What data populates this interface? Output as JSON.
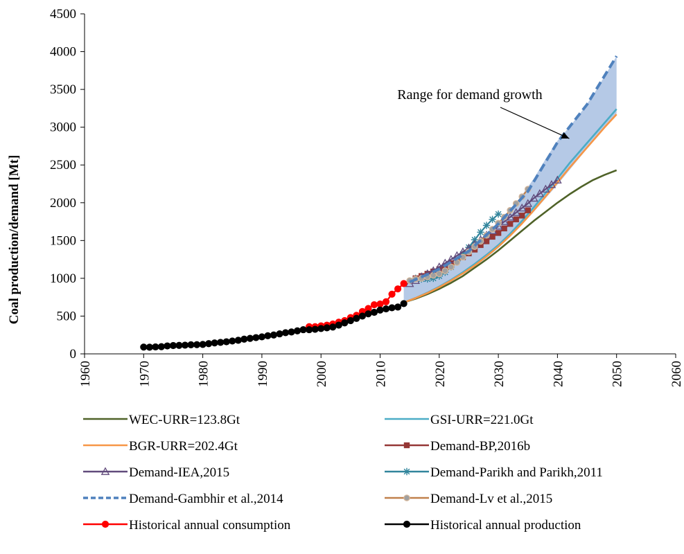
{
  "chart_data": {
    "type": "line",
    "ylabel": "Coal production/demand [Mt]",
    "xlim": [
      1960,
      2060
    ],
    "ylim": [
      0,
      4500
    ],
    "x_ticks": [
      "1960",
      "1970",
      "1980",
      "1990",
      "2000",
      "2010",
      "2020",
      "2030",
      "2040",
      "2050",
      "2060"
    ],
    "y_ticks": [
      "0",
      "500",
      "1000",
      "1500",
      "2000",
      "2500",
      "3000",
      "3500",
      "4000",
      "4500"
    ],
    "grid": false,
    "legend_position": "bottom",
    "annotation": {
      "text": "Range for demand growth",
      "arrow_to": [
        2042,
        2850
      ]
    },
    "range_band": {
      "upper": [
        [
          2014,
          950
        ],
        [
          2016,
          1000
        ],
        [
          2018,
          1050
        ],
        [
          2020,
          1120
        ],
        [
          2022,
          1200
        ],
        [
          2024,
          1290
        ],
        [
          2026,
          1400
        ],
        [
          2028,
          1550
        ],
        [
          2030,
          1720
        ],
        [
          2032,
          1900
        ],
        [
          2034,
          2100
        ],
        [
          2036,
          2320
        ],
        [
          2038,
          2580
        ],
        [
          2040,
          2820
        ],
        [
          2042,
          3000
        ],
        [
          2044,
          3200
        ],
        [
          2046,
          3420
        ],
        [
          2048,
          3680
        ],
        [
          2050,
          3940
        ]
      ],
      "lower": [
        [
          2014,
          680
        ],
        [
          2016,
          740
        ],
        [
          2018,
          800
        ],
        [
          2020,
          880
        ],
        [
          2022,
          960
        ],
        [
          2024,
          1060
        ],
        [
          2026,
          1160
        ],
        [
          2028,
          1270
        ],
        [
          2030,
          1400
        ],
        [
          2032,
          1550
        ],
        [
          2034,
          1710
        ],
        [
          2036,
          1880
        ],
        [
          2038,
          2060
        ],
        [
          2040,
          2240
        ],
        [
          2042,
          2430
        ],
        [
          2044,
          2620
        ],
        [
          2046,
          2810
        ],
        [
          2048,
          3000
        ],
        [
          2050,
          3180
        ]
      ],
      "color": "#b5c9e6"
    },
    "series": [
      {
        "name": "WEC-URR=123.8Gt",
        "color": "#4f6228",
        "style": "solid",
        "marker": "none",
        "points": [
          [
            2014,
            680
          ],
          [
            2016,
            730
          ],
          [
            2018,
            790
          ],
          [
            2020,
            860
          ],
          [
            2022,
            940
          ],
          [
            2024,
            1030
          ],
          [
            2026,
            1140
          ],
          [
            2028,
            1250
          ],
          [
            2030,
            1370
          ],
          [
            2032,
            1500
          ],
          [
            2034,
            1630
          ],
          [
            2036,
            1760
          ],
          [
            2038,
            1880
          ],
          [
            2040,
            2000
          ],
          [
            2042,
            2110
          ],
          [
            2044,
            2210
          ],
          [
            2046,
            2300
          ],
          [
            2048,
            2370
          ],
          [
            2050,
            2430
          ]
        ]
      },
      {
        "name": "GSI-URR=221.0Gt",
        "color": "#4bacc6",
        "style": "solid",
        "marker": "none",
        "points": [
          [
            2014,
            680
          ],
          [
            2016,
            740
          ],
          [
            2018,
            810
          ],
          [
            2020,
            890
          ],
          [
            2022,
            980
          ],
          [
            2024,
            1080
          ],
          [
            2026,
            1190
          ],
          [
            2028,
            1310
          ],
          [
            2030,
            1440
          ],
          [
            2032,
            1590
          ],
          [
            2034,
            1760
          ],
          [
            2036,
            1940
          ],
          [
            2038,
            2130
          ],
          [
            2040,
            2320
          ],
          [
            2042,
            2520
          ],
          [
            2044,
            2700
          ],
          [
            2046,
            2880
          ],
          [
            2048,
            3060
          ],
          [
            2050,
            3240
          ]
        ]
      },
      {
        "name": "BGR-URR=202.4Gt",
        "color": "#f79646",
        "style": "solid",
        "marker": "none",
        "points": [
          [
            2014,
            680
          ],
          [
            2016,
            738
          ],
          [
            2018,
            805
          ],
          [
            2020,
            882
          ],
          [
            2022,
            970
          ],
          [
            2024,
            1065
          ],
          [
            2026,
            1170
          ],
          [
            2028,
            1290
          ],
          [
            2030,
            1420
          ],
          [
            2032,
            1565
          ],
          [
            2034,
            1725
          ],
          [
            2036,
            1900
          ],
          [
            2038,
            2085
          ],
          [
            2040,
            2270
          ],
          [
            2042,
            2460
          ],
          [
            2044,
            2640
          ],
          [
            2046,
            2820
          ],
          [
            2048,
            3000
          ],
          [
            2050,
            3170
          ]
        ]
      },
      {
        "name": "Demand-BP,2016b",
        "color": "#953735",
        "style": "solid",
        "marker": "square",
        "points": [
          [
            2016,
            1000
          ],
          [
            2017,
            1030
          ],
          [
            2018,
            1060
          ],
          [
            2019,
            1090
          ],
          [
            2020,
            1120
          ],
          [
            2021,
            1160
          ],
          [
            2022,
            1200
          ],
          [
            2023,
            1240
          ],
          [
            2024,
            1280
          ],
          [
            2025,
            1330
          ],
          [
            2026,
            1380
          ],
          [
            2027,
            1440
          ],
          [
            2028,
            1490
          ],
          [
            2029,
            1550
          ],
          [
            2030,
            1600
          ],
          [
            2031,
            1660
          ],
          [
            2032,
            1720
          ],
          [
            2033,
            1780
          ],
          [
            2034,
            1830
          ],
          [
            2035,
            1900
          ]
        ]
      },
      {
        "name": "Demand-IEA,2015",
        "color": "#604a7b",
        "style": "solid",
        "marker": "triangle",
        "points": [
          [
            2015,
            930
          ],
          [
            2016,
            970
          ],
          [
            2017,
            1020
          ],
          [
            2018,
            1060
          ],
          [
            2019,
            1100
          ],
          [
            2020,
            1150
          ],
          [
            2021,
            1200
          ],
          [
            2022,
            1250
          ],
          [
            2023,
            1300
          ],
          [
            2024,
            1350
          ],
          [
            2025,
            1400
          ],
          [
            2026,
            1450
          ],
          [
            2027,
            1510
          ],
          [
            2028,
            1570
          ],
          [
            2029,
            1630
          ],
          [
            2030,
            1690
          ],
          [
            2031,
            1750
          ],
          [
            2032,
            1810
          ],
          [
            2033,
            1870
          ],
          [
            2034,
            1930
          ],
          [
            2035,
            1990
          ],
          [
            2036,
            2060
          ],
          [
            2037,
            2120
          ],
          [
            2038,
            2180
          ],
          [
            2039,
            2240
          ],
          [
            2040,
            2300
          ]
        ]
      },
      {
        "name": "Demand-Parikh and Parikh,2011",
        "color": "#31859c",
        "style": "solid",
        "marker": "star",
        "points": [
          [
            2016,
            1000
          ],
          [
            2017,
            990
          ],
          [
            2018,
            990
          ],
          [
            2019,
            1000
          ],
          [
            2020,
            1030
          ],
          [
            2021,
            1080
          ],
          [
            2022,
            1150
          ],
          [
            2023,
            1230
          ],
          [
            2024,
            1320
          ],
          [
            2025,
            1410
          ],
          [
            2026,
            1510
          ],
          [
            2027,
            1610
          ],
          [
            2028,
            1700
          ],
          [
            2029,
            1780
          ],
          [
            2030,
            1850
          ]
        ]
      },
      {
        "name": "Demand-Gambhir et al.,2014",
        "color": "#4f81bd",
        "style": "dashed",
        "marker": "none",
        "points": [
          [
            2015,
            950
          ],
          [
            2020,
            1120
          ],
          [
            2025,
            1360
          ],
          [
            2030,
            1720
          ],
          [
            2035,
            2150
          ],
          [
            2040,
            2800
          ],
          [
            2045,
            3300
          ],
          [
            2050,
            3940
          ]
        ]
      },
      {
        "name": "Demand-Lv et al.,2015",
        "color": "#c0804b",
        "style": "solid",
        "marker": "circle-grey",
        "points": [
          [
            2015,
            970
          ],
          [
            2016,
            990
          ],
          [
            2017,
            1000
          ],
          [
            2018,
            1020
          ],
          [
            2019,
            1040
          ],
          [
            2020,
            1060
          ],
          [
            2021,
            1100
          ],
          [
            2022,
            1150
          ],
          [
            2023,
            1210
          ],
          [
            2024,
            1280
          ],
          [
            2025,
            1350
          ],
          [
            2026,
            1420
          ],
          [
            2027,
            1490
          ],
          [
            2028,
            1570
          ],
          [
            2029,
            1650
          ],
          [
            2030,
            1730
          ],
          [
            2031,
            1810
          ],
          [
            2032,
            1900
          ],
          [
            2033,
            1990
          ],
          [
            2034,
            2080
          ],
          [
            2035,
            2180
          ]
        ]
      },
      {
        "name": "Historical annual consumption",
        "color": "#ff0000",
        "style": "solid",
        "marker": "circle",
        "points": [
          [
            1998,
            360
          ],
          [
            1999,
            360
          ],
          [
            2000,
            370
          ],
          [
            2001,
            380
          ],
          [
            2002,
            395
          ],
          [
            2003,
            420
          ],
          [
            2004,
            440
          ],
          [
            2005,
            480
          ],
          [
            2006,
            510
          ],
          [
            2007,
            560
          ],
          [
            2008,
            600
          ],
          [
            2009,
            650
          ],
          [
            2010,
            660
          ],
          [
            2011,
            690
          ],
          [
            2012,
            790
          ],
          [
            2013,
            860
          ],
          [
            2014,
            930
          ]
        ]
      },
      {
        "name": "Historical annual production",
        "color": "#000000",
        "style": "solid",
        "marker": "circle",
        "points": [
          [
            1970,
            90
          ],
          [
            1971,
            88
          ],
          [
            1972,
            92
          ],
          [
            1973,
            95
          ],
          [
            1974,
            105
          ],
          [
            1975,
            110
          ],
          [
            1976,
            112
          ],
          [
            1977,
            115
          ],
          [
            1978,
            120
          ],
          [
            1979,
            122
          ],
          [
            1980,
            125
          ],
          [
            1981,
            135
          ],
          [
            1982,
            145
          ],
          [
            1983,
            152
          ],
          [
            1984,
            160
          ],
          [
            1985,
            170
          ],
          [
            1986,
            180
          ],
          [
            1987,
            195
          ],
          [
            1988,
            205
          ],
          [
            1989,
            215
          ],
          [
            1990,
            225
          ],
          [
            1991,
            240
          ],
          [
            1992,
            250
          ],
          [
            1993,
            265
          ],
          [
            1994,
            280
          ],
          [
            1995,
            290
          ],
          [
            1996,
            305
          ],
          [
            1997,
            320
          ],
          [
            1998,
            320
          ],
          [
            1999,
            325
          ],
          [
            2000,
            335
          ],
          [
            2001,
            345
          ],
          [
            2002,
            355
          ],
          [
            2003,
            380
          ],
          [
            2004,
            410
          ],
          [
            2005,
            440
          ],
          [
            2006,
            470
          ],
          [
            2007,
            500
          ],
          [
            2008,
            530
          ],
          [
            2009,
            550
          ],
          [
            2010,
            580
          ],
          [
            2011,
            595
          ],
          [
            2012,
            610
          ],
          [
            2013,
            620
          ],
          [
            2014,
            665
          ]
        ]
      }
    ]
  }
}
